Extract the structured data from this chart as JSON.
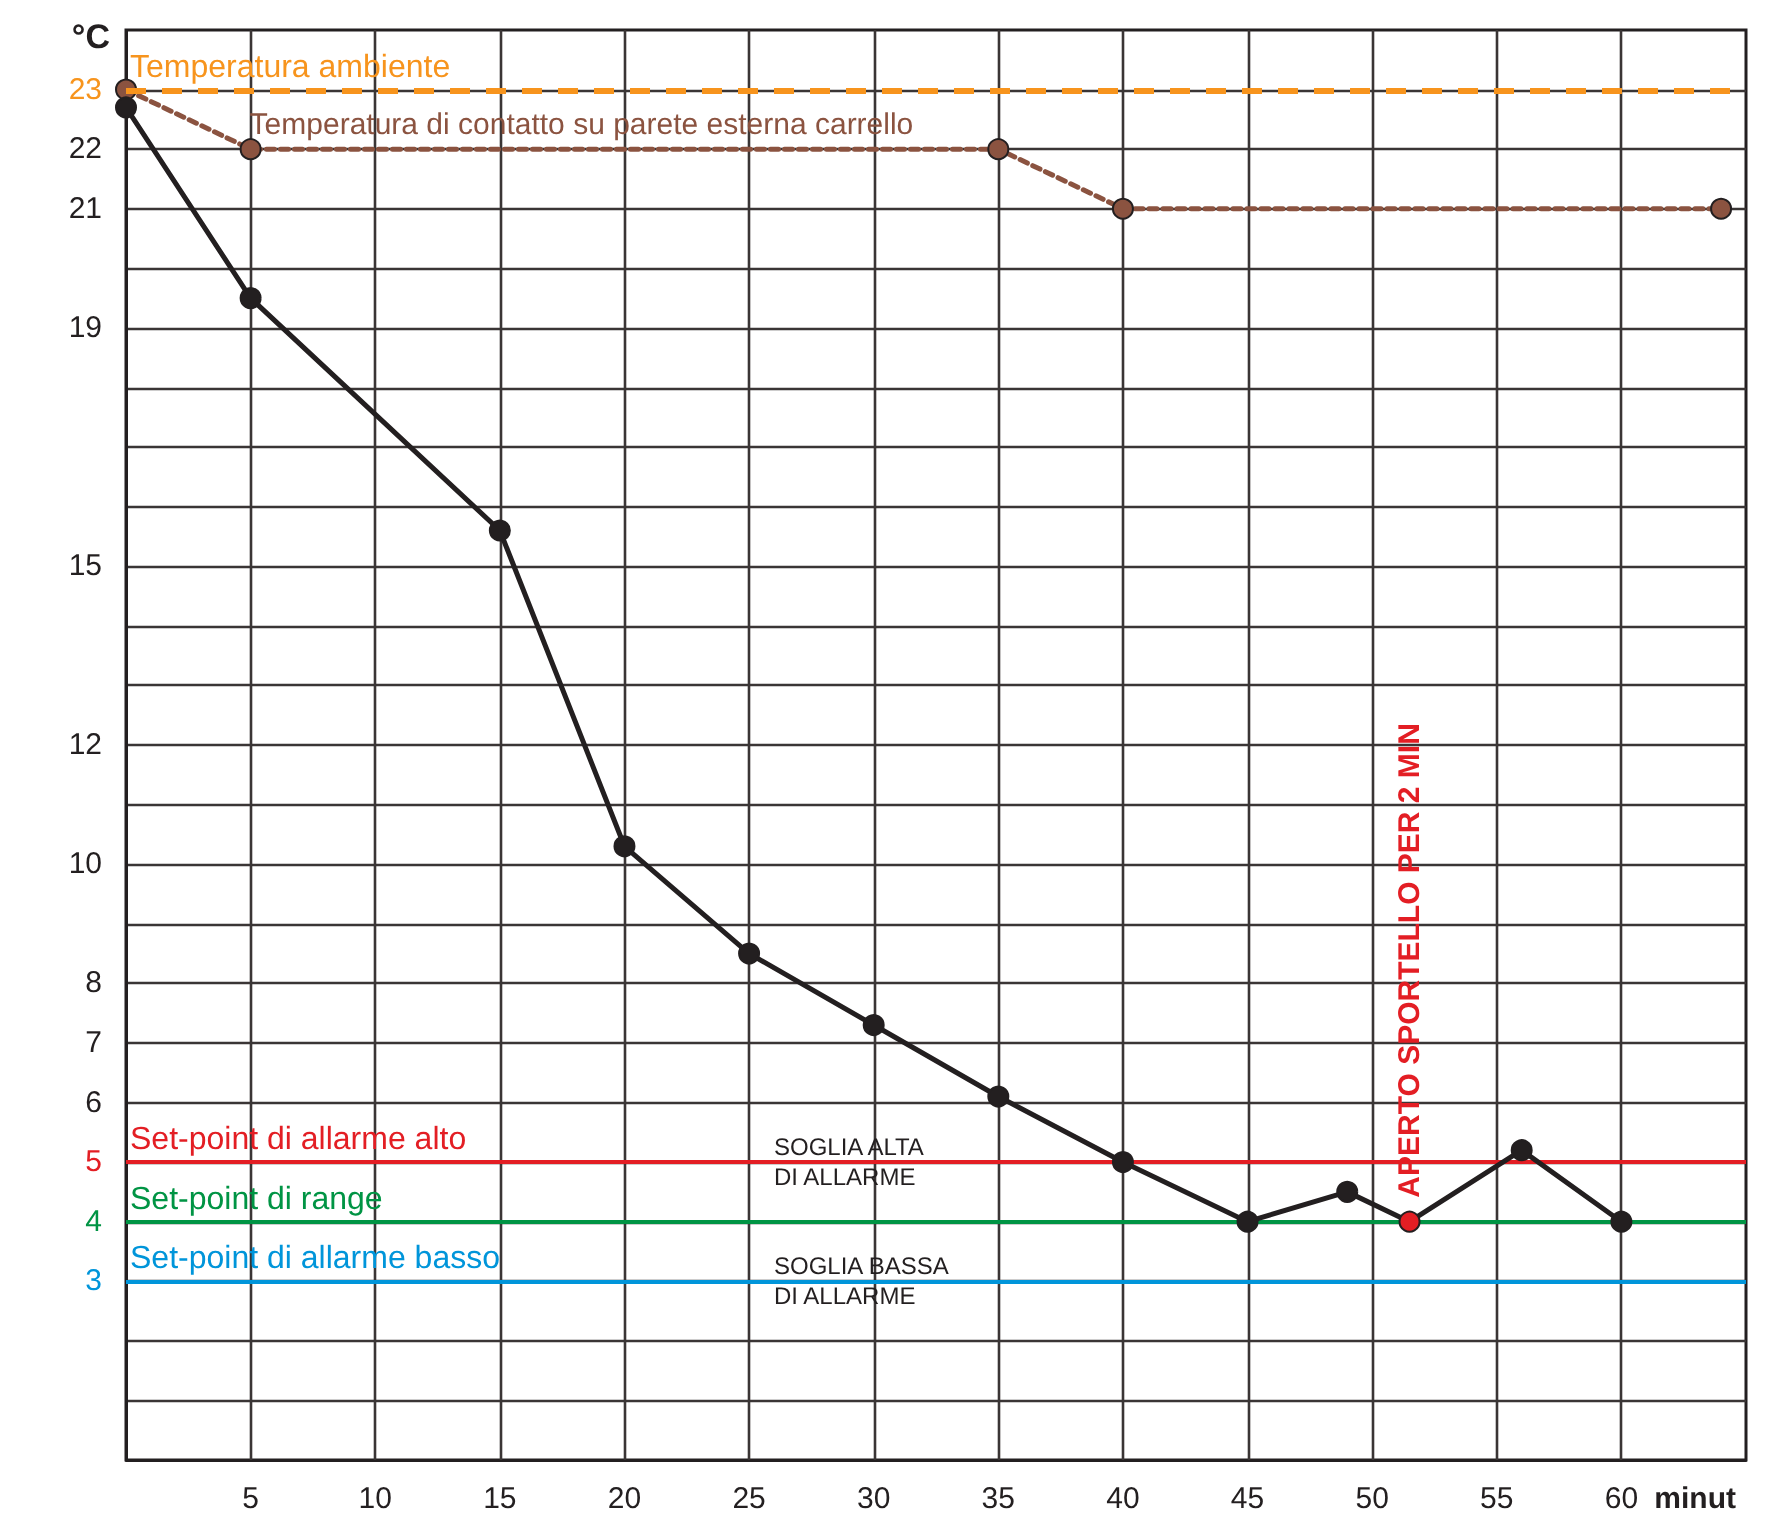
{
  "chart_data": {
    "type": "line",
    "xlabel": "minut",
    "ylabel": "°C",
    "xlim": [
      0,
      65
    ],
    "xticks": [
      5,
      10,
      15,
      20,
      25,
      30,
      35,
      40,
      45,
      50,
      55,
      60
    ],
    "ylim": [
      0,
      24
    ],
    "yticks": [
      {
        "value": 1,
        "label": null
      },
      {
        "value": 2,
        "label": null
      },
      3,
      4,
      5,
      6,
      7,
      8,
      {
        "value": 9,
        "label": null
      },
      10,
      {
        "value": 11,
        "label": null
      },
      12,
      {
        "value": 13,
        "label": null
      },
      {
        "value": 14,
        "label": null
      },
      15,
      {
        "value": 16,
        "label": null
      },
      {
        "value": 17,
        "label": null
      },
      {
        "value": 18,
        "label": null
      },
      19,
      {
        "value": 20,
        "label": null
      },
      21,
      22,
      23
    ],
    "grid": true,
    "legend": false,
    "marker": "circle",
    "series": [
      {
        "color": "#231f20",
        "line_style": "solid",
        "x": [
          0,
          5,
          15,
          20,
          25,
          30,
          35,
          40,
          45,
          49,
          51.5,
          56,
          60
        ],
        "values": [
          22.7,
          19.5,
          15.6,
          10.3,
          8.5,
          7.3,
          6.1,
          5.0,
          4.0,
          4.5,
          4.0,
          5.2,
          4.0
        ],
        "colors": [
          "#231f20",
          "#231f20",
          "#231f20",
          "#231f20",
          "#231f20",
          "#231f20",
          "#231f20",
          "#231f20",
          "#231f20",
          "#231f20",
          "#e31e24",
          "#231f20",
          "#231f20"
        ]
      },
      {
        "name": "Temperatura di contatto su parete esterna carrello",
        "color": "#8b5340",
        "line_style": "dotted",
        "x": [
          0,
          5,
          35,
          40,
          64
        ],
        "values": [
          23,
          22,
          22,
          21,
          21
        ]
      }
    ],
    "ref_lines": [
      {
        "axis": "y",
        "value": 23,
        "label": "Temperatura ambiente",
        "color": "#f7941d",
        "line_style": "dashed"
      },
      {
        "axis": "y",
        "value": 5,
        "label": "Set-point di allarme alto",
        "color": "#e31e24",
        "line_style": "solid"
      },
      {
        "axis": "y",
        "value": 4,
        "label": "Set-point di range",
        "color": "#009444",
        "line_style": "solid"
      },
      {
        "axis": "y",
        "value": 3,
        "label": "Set-point di allarme basso",
        "color": "#0095da",
        "line_style": "solid"
      }
    ],
    "annotations": [
      {
        "text": "SOGLIA ALTA\nDI ALLARME",
        "y": 5
      },
      {
        "text": "SOGLIA BASSA\nDI ALLARME",
        "y": 3
      },
      {
        "text": "APERTO SPORTELLO PER 2 MIN",
        "x": 51.5,
        "y": 4
      }
    ]
  }
}
